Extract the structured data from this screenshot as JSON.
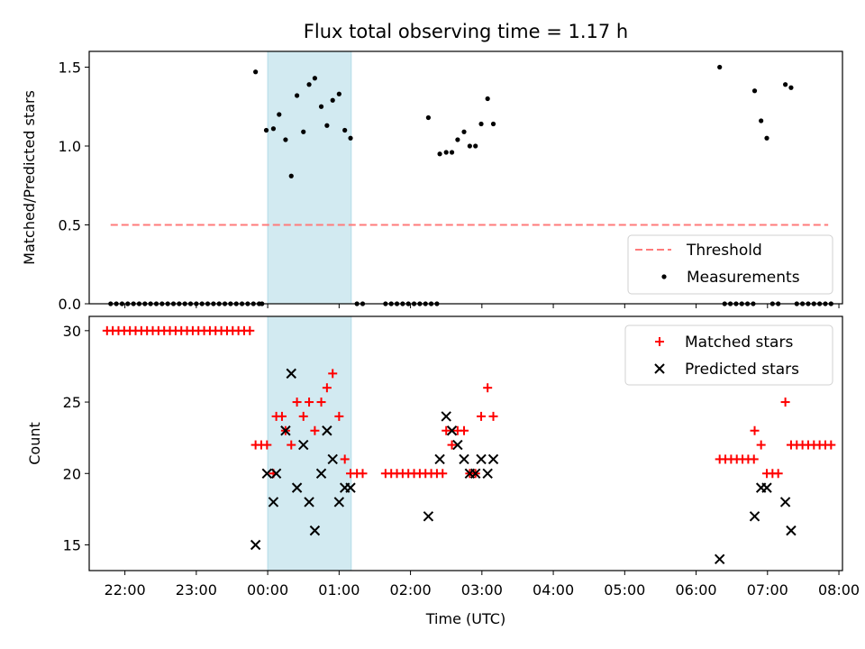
{
  "title": "Flux total observing time = 1.17 h",
  "xlabel": "Time (UTC)",
  "xticks": [
    "22:00",
    "23:00",
    "00:00",
    "01:00",
    "02:00",
    "03:00",
    "04:00",
    "05:00",
    "06:00",
    "07:00",
    "08:00"
  ],
  "shaded_span": {
    "start_h": 0.0,
    "end_h": 1.17,
    "color": "#add8e6"
  },
  "chart_data": [
    {
      "type": "scatter",
      "ylabel": "Matched/Predicted stars",
      "xlim_h": [
        -2.5,
        8.05
      ],
      "ylim": [
        0,
        1.6
      ],
      "yticks": [
        "0.0",
        "0.5",
        "1.0",
        "1.5"
      ],
      "threshold": {
        "name": "Threshold",
        "value": 0.5,
        "x_range_h": [
          -2.2,
          7.85
        ],
        "color": "#ff7b7b"
      },
      "legend": {
        "placement": "lower-right",
        "entries": [
          "Threshold",
          "Measurements"
        ]
      },
      "series": [
        {
          "name": "Measurements",
          "color": "#000000",
          "points": [
            [
              -2.2,
              0
            ],
            [
              -2.12,
              0
            ],
            [
              -2.04,
              0
            ],
            [
              -1.96,
              0
            ],
            [
              -1.88,
              0
            ],
            [
              -1.8,
              0
            ],
            [
              -1.72,
              0
            ],
            [
              -1.64,
              0
            ],
            [
              -1.56,
              0
            ],
            [
              -1.48,
              0
            ],
            [
              -1.4,
              0
            ],
            [
              -1.32,
              0
            ],
            [
              -1.24,
              0
            ],
            [
              -1.16,
              0
            ],
            [
              -1.08,
              0
            ],
            [
              -1.0,
              0
            ],
            [
              -0.92,
              0
            ],
            [
              -0.84,
              0
            ],
            [
              -0.76,
              0
            ],
            [
              -0.68,
              0
            ],
            [
              -0.6,
              0
            ],
            [
              -0.52,
              0
            ],
            [
              -0.44,
              0
            ],
            [
              -0.36,
              0
            ],
            [
              -0.28,
              0
            ],
            [
              -0.2,
              0
            ],
            [
              -0.12,
              0
            ],
            [
              -0.17,
              1.47
            ],
            [
              -0.08,
              0
            ],
            [
              -0.02,
              1.1
            ],
            [
              0.08,
              1.11
            ],
            [
              0.16,
              1.2
            ],
            [
              0.25,
              1.04
            ],
            [
              0.33,
              0.81
            ],
            [
              0.41,
              1.32
            ],
            [
              0.5,
              1.09
            ],
            [
              0.58,
              1.39
            ],
            [
              0.66,
              1.43
            ],
            [
              0.75,
              1.25
            ],
            [
              0.83,
              1.13
            ],
            [
              0.91,
              1.29
            ],
            [
              1.0,
              1.33
            ],
            [
              1.08,
              1.1
            ],
            [
              1.16,
              1.05
            ],
            [
              1.25,
              0
            ],
            [
              1.33,
              0
            ],
            [
              1.65,
              0
            ],
            [
              1.73,
              0
            ],
            [
              1.81,
              0
            ],
            [
              1.89,
              0
            ],
            [
              1.97,
              0
            ],
            [
              2.05,
              0
            ],
            [
              2.13,
              0
            ],
            [
              2.21,
              0
            ],
            [
              2.29,
              0
            ],
            [
              2.37,
              0
            ],
            [
              2.25,
              1.18
            ],
            [
              2.41,
              0.95
            ],
            [
              2.5,
              0.96
            ],
            [
              2.58,
              0.96
            ],
            [
              2.66,
              1.04
            ],
            [
              2.75,
              1.09
            ],
            [
              2.83,
              1.0
            ],
            [
              2.91,
              1.0
            ],
            [
              2.99,
              1.14
            ],
            [
              3.08,
              1.3
            ],
            [
              3.16,
              1.14
            ],
            [
              6.33,
              1.5
            ],
            [
              6.4,
              0
            ],
            [
              6.48,
              0
            ],
            [
              6.56,
              0
            ],
            [
              6.64,
              0
            ],
            [
              6.72,
              0
            ],
            [
              6.8,
              0
            ],
            [
              6.82,
              1.35
            ],
            [
              6.91,
              1.16
            ],
            [
              6.99,
              1.05
            ],
            [
              7.07,
              0
            ],
            [
              7.15,
              0
            ],
            [
              7.25,
              1.39
            ],
            [
              7.33,
              1.37
            ],
            [
              7.41,
              0
            ],
            [
              7.49,
              0
            ],
            [
              7.57,
              0
            ],
            [
              7.65,
              0
            ],
            [
              7.73,
              0
            ],
            [
              7.81,
              0
            ],
            [
              7.89,
              0
            ]
          ]
        }
      ]
    },
    {
      "type": "scatter",
      "ylabel": "Count",
      "xlim_h": [
        -2.5,
        8.05
      ],
      "ylim": [
        13.2,
        31
      ],
      "yticks": [
        "15",
        "20",
        "25",
        "30"
      ],
      "legend": {
        "placement": "top-right",
        "entries": [
          "Matched stars",
          "Predicted stars"
        ]
      },
      "series": [
        {
          "name": "Matched stars",
          "color": "#ff0000",
          "marker": "plus",
          "points": [
            [
              -2.25,
              30
            ],
            [
              -2.17,
              30
            ],
            [
              -2.09,
              30
            ],
            [
              -2.01,
              30
            ],
            [
              -1.93,
              30
            ],
            [
              -1.85,
              30
            ],
            [
              -1.77,
              30
            ],
            [
              -1.69,
              30
            ],
            [
              -1.61,
              30
            ],
            [
              -1.53,
              30
            ],
            [
              -1.45,
              30
            ],
            [
              -1.37,
              30
            ],
            [
              -1.29,
              30
            ],
            [
              -1.21,
              30
            ],
            [
              -1.13,
              30
            ],
            [
              -1.05,
              30
            ],
            [
              -0.97,
              30
            ],
            [
              -0.89,
              30
            ],
            [
              -0.81,
              30
            ],
            [
              -0.73,
              30
            ],
            [
              -0.65,
              30
            ],
            [
              -0.57,
              30
            ],
            [
              -0.49,
              30
            ],
            [
              -0.41,
              30
            ],
            [
              -0.33,
              30
            ],
            [
              -0.25,
              30
            ],
            [
              -0.17,
              22
            ],
            [
              -0.09,
              22
            ],
            [
              -0.01,
              22
            ],
            [
              0.08,
              20
            ],
            [
              0.12,
              24
            ],
            [
              0.2,
              24
            ],
            [
              0.25,
              23
            ],
            [
              0.33,
              22
            ],
            [
              0.41,
              25
            ],
            [
              0.5,
              24
            ],
            [
              0.58,
              25
            ],
            [
              0.66,
              23
            ],
            [
              0.75,
              25
            ],
            [
              0.83,
              26
            ],
            [
              0.91,
              27
            ],
            [
              1.0,
              24
            ],
            [
              1.08,
              21
            ],
            [
              1.16,
              20
            ],
            [
              1.25,
              20
            ],
            [
              1.33,
              20
            ],
            [
              1.65,
              20
            ],
            [
              1.73,
              20
            ],
            [
              1.81,
              20
            ],
            [
              1.89,
              20
            ],
            [
              1.97,
              20
            ],
            [
              2.05,
              20
            ],
            [
              2.13,
              20
            ],
            [
              2.21,
              20
            ],
            [
              2.29,
              20
            ],
            [
              2.37,
              20
            ],
            [
              2.45,
              20
            ],
            [
              2.5,
              23
            ],
            [
              2.58,
              22
            ],
            [
              2.66,
              23
            ],
            [
              2.75,
              23
            ],
            [
              2.83,
              20
            ],
            [
              2.91,
              20
            ],
            [
              2.99,
              24
            ],
            [
              3.08,
              26
            ],
            [
              3.16,
              24
            ],
            [
              6.33,
              21
            ],
            [
              6.41,
              21
            ],
            [
              6.49,
              21
            ],
            [
              6.57,
              21
            ],
            [
              6.65,
              21
            ],
            [
              6.73,
              21
            ],
            [
              6.81,
              21
            ],
            [
              6.82,
              23
            ],
            [
              6.91,
              22
            ],
            [
              6.99,
              20
            ],
            [
              7.07,
              20
            ],
            [
              7.15,
              20
            ],
            [
              7.25,
              25
            ],
            [
              7.33,
              22
            ],
            [
              7.41,
              22
            ],
            [
              7.49,
              22
            ],
            [
              7.57,
              22
            ],
            [
              7.65,
              22
            ],
            [
              7.73,
              22
            ],
            [
              7.81,
              22
            ],
            [
              7.89,
              22
            ]
          ]
        },
        {
          "name": "Predicted stars",
          "color": "#000000",
          "marker": "x",
          "points": [
            [
              -0.17,
              15
            ],
            [
              -0.01,
              20
            ],
            [
              0.08,
              18
            ],
            [
              0.12,
              20
            ],
            [
              0.25,
              23
            ],
            [
              0.33,
              27
            ],
            [
              0.41,
              19
            ],
            [
              0.5,
              22
            ],
            [
              0.58,
              18
            ],
            [
              0.66,
              16
            ],
            [
              0.75,
              20
            ],
            [
              0.83,
              23
            ],
            [
              0.91,
              21
            ],
            [
              1.0,
              18
            ],
            [
              1.08,
              19
            ],
            [
              1.16,
              19
            ],
            [
              2.25,
              17
            ],
            [
              2.41,
              21
            ],
            [
              2.5,
              24
            ],
            [
              2.58,
              23
            ],
            [
              2.66,
              22
            ],
            [
              2.75,
              21
            ],
            [
              2.83,
              20
            ],
            [
              2.91,
              20
            ],
            [
              2.99,
              21
            ],
            [
              3.08,
              20
            ],
            [
              3.16,
              21
            ],
            [
              6.33,
              14
            ],
            [
              6.82,
              17
            ],
            [
              6.91,
              19
            ],
            [
              6.99,
              19
            ],
            [
              7.25,
              18
            ],
            [
              7.33,
              16
            ]
          ]
        }
      ]
    }
  ]
}
